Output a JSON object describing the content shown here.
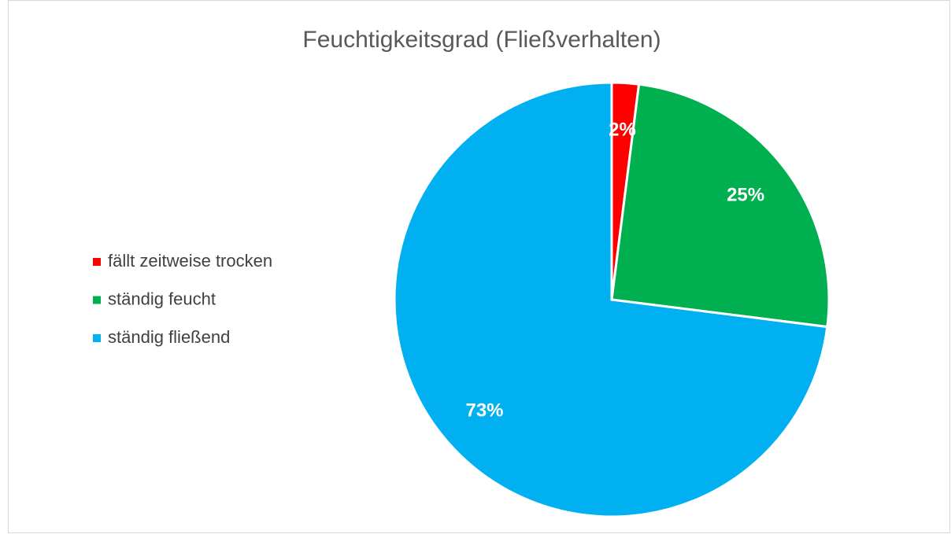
{
  "chart_data": {
    "type": "pie",
    "title": "Feuchtigkeitsgrad (Fließverhalten)",
    "categories": [
      "fällt zeitweise trocken",
      "ständig feucht",
      "ständig fließend"
    ],
    "values": [
      2,
      25,
      73
    ],
    "value_labels": [
      "2%",
      "25%",
      "73%"
    ],
    "colors": [
      "#ff0000",
      "#00b050",
      "#00b0f0"
    ],
    "legend": "left"
  }
}
